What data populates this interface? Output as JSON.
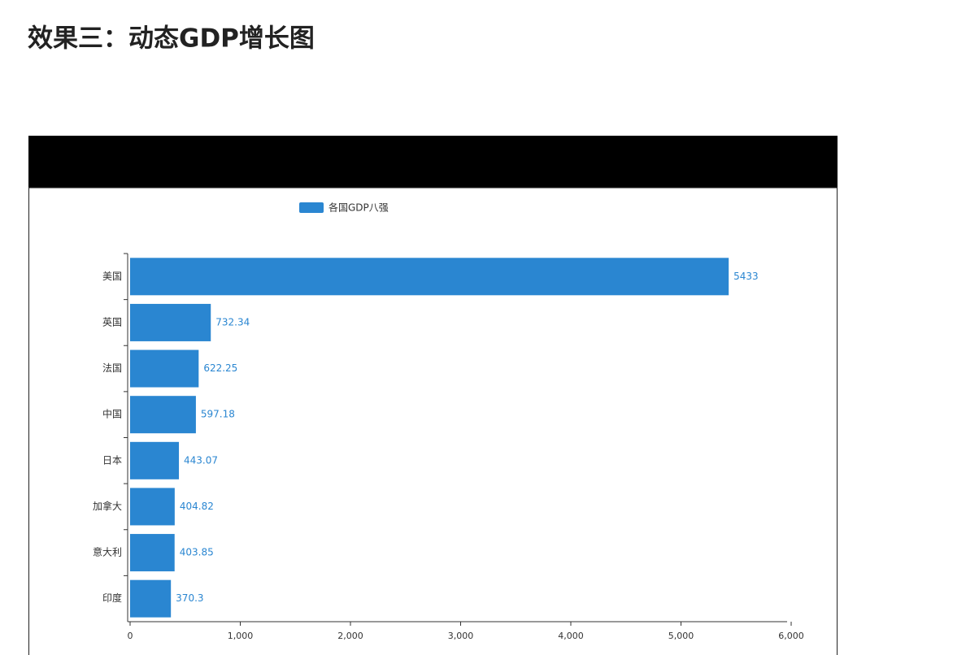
{
  "heading": "效果三：动态GDP增长图",
  "chart_data": {
    "type": "bar",
    "orientation": "horizontal",
    "legend": "各国GDP八强",
    "legend_position": "top",
    "categories": [
      "美国",
      "英国",
      "法国",
      "中国",
      "日本",
      "加拿大",
      "意大利",
      "印度"
    ],
    "values": [
      5433,
      732.34,
      622.25,
      597.18,
      443.07,
      404.82,
      403.85,
      370.3
    ],
    "color": "#2a86d1",
    "xlim": [
      0,
      6000
    ],
    "xticks": [
      0,
      {
        "value": 1000,
        "label": "1,000"
      },
      {
        "value": 2000,
        "label": "2,000"
      },
      {
        "value": 3000,
        "label": "3,000"
      },
      {
        "value": 4000,
        "label": "4,000"
      },
      {
        "value": 5000,
        "label": "5,000"
      },
      {
        "value": 6000,
        "label": "6,000"
      }
    ],
    "grid": false
  }
}
